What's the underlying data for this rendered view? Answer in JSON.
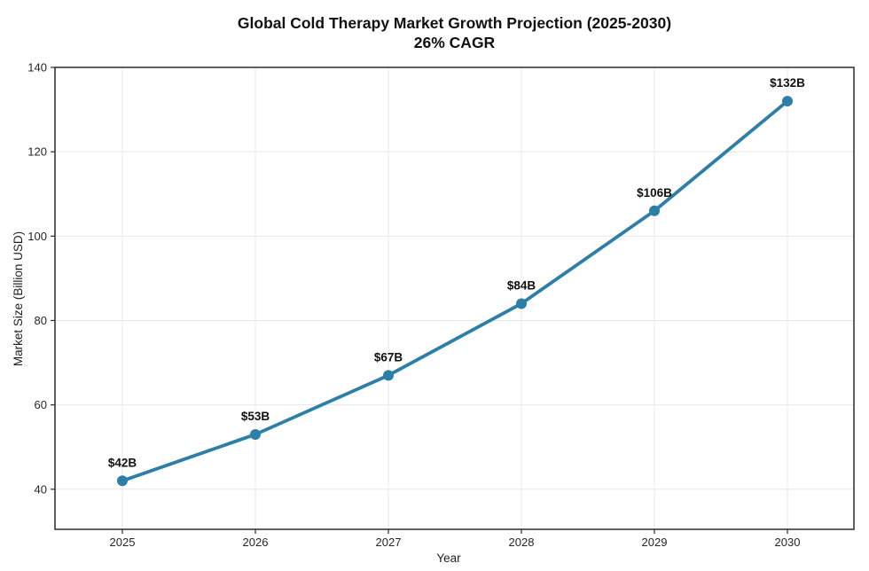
{
  "title": {
    "line1": "Global Cold Therapy Market Growth Projection (2025-2030)",
    "line2": "26% CAGR"
  },
  "axes": {
    "x_label": "Year",
    "y_label": "Market Size (Billion USD)"
  },
  "chart_data": {
    "type": "line",
    "title": "Global Cold Therapy Market Growth Projection (2025-2030) 26% CAGR",
    "xlabel": "Year",
    "ylabel": "Market Size (Billion USD)",
    "categories": [
      "2025",
      "2026",
      "2027",
      "2028",
      "2029",
      "2030"
    ],
    "values": [
      42,
      53,
      67,
      84,
      106,
      132
    ],
    "point_labels": [
      "$42B",
      "$53B",
      "$67B",
      "$84B",
      "$106B",
      "$132B"
    ],
    "yticks": [
      40,
      60,
      80,
      100,
      120,
      140
    ],
    "ylim": [
      30.5,
      140
    ],
    "grid": true,
    "legend": "none",
    "colors": {
      "line": "#2d7fa8",
      "marker": "#2d7fa8",
      "grid": "#e8e8e8",
      "spine": "#2b2b2b",
      "tick_text": "#262626",
      "label_text": "#111111"
    }
  }
}
